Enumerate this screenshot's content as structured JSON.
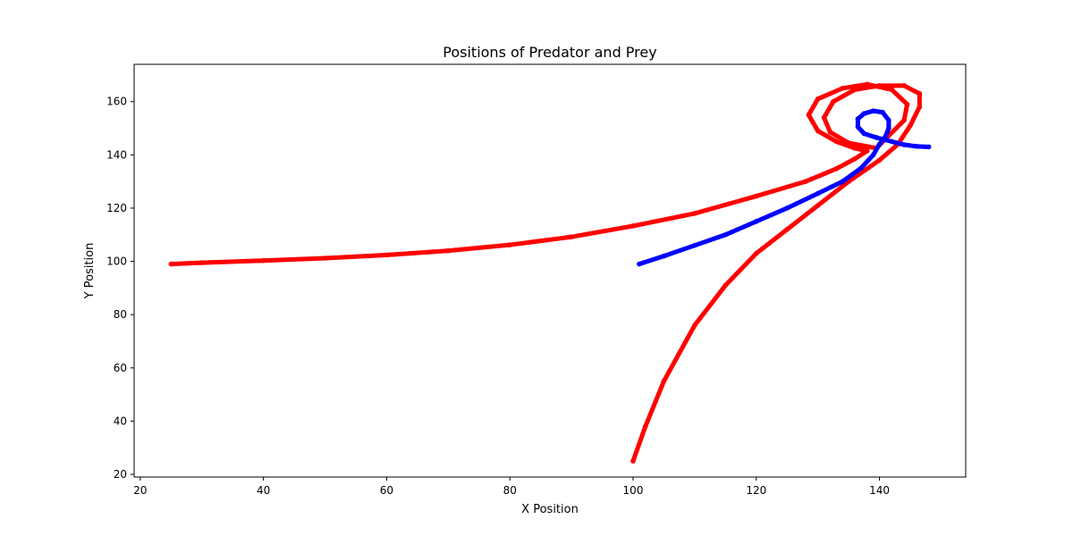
{
  "chart_data": {
    "type": "scatter",
    "title": "Positions of Predator and Prey",
    "xlabel": "X Position",
    "ylabel": "Y Position",
    "xlim": [
      19,
      154
    ],
    "ylim": [
      19,
      174
    ],
    "xticks": [
      20,
      40,
      60,
      80,
      100,
      120,
      140
    ],
    "yticks": [
      20,
      40,
      60,
      80,
      100,
      120,
      140,
      160
    ],
    "grid": false,
    "legend": "none",
    "series": [
      {
        "color": "#ff0000",
        "marker": "dot",
        "points": [
          [
            25,
            99
          ],
          [
            30,
            99.5
          ],
          [
            40,
            100.3
          ],
          [
            50,
            101.2
          ],
          [
            60,
            102.4
          ],
          [
            70,
            104
          ],
          [
            80,
            106.2
          ],
          [
            90,
            109.2
          ],
          [
            100,
            113.3
          ],
          [
            110,
            118
          ],
          [
            120,
            124.5
          ],
          [
            128,
            130
          ],
          [
            133,
            134.8
          ],
          [
            136,
            138.5
          ],
          [
            138,
            141.5
          ],
          [
            136,
            142.5
          ],
          [
            133,
            145
          ],
          [
            130,
            149
          ],
          [
            128.5,
            155
          ],
          [
            130,
            161
          ],
          [
            134,
            165
          ],
          [
            138,
            166.5
          ],
          [
            142,
            164.5
          ],
          [
            144.5,
            159
          ],
          [
            144,
            153
          ],
          [
            141,
            146
          ],
          [
            139.5,
            142.5
          ],
          [
            135,
            144.5
          ],
          [
            132,
            148.5
          ],
          [
            131,
            154
          ],
          [
            132.5,
            160
          ],
          [
            136,
            164.5
          ],
          [
            140,
            166
          ],
          [
            144,
            166
          ],
          [
            146.5,
            163
          ],
          [
            146.5,
            158
          ],
          [
            145,
            151
          ],
          [
            143,
            144
          ],
          [
            140,
            138
          ],
          [
            135,
            130
          ],
          [
            130,
            121
          ],
          [
            125,
            112
          ],
          [
            120,
            103
          ],
          [
            115,
            91
          ],
          [
            110,
            76
          ],
          [
            105,
            55
          ],
          [
            102,
            38
          ],
          [
            100,
            25
          ]
        ]
      },
      {
        "color": "#0000ff",
        "marker": "dot",
        "points": [
          [
            101,
            99
          ],
          [
            105,
            102
          ],
          [
            110,
            106
          ],
          [
            115,
            110
          ],
          [
            120,
            115
          ],
          [
            125,
            120
          ],
          [
            130,
            125.5
          ],
          [
            134,
            130
          ],
          [
            137,
            135
          ],
          [
            139,
            140
          ],
          [
            140,
            144
          ],
          [
            141,
            147
          ],
          [
            141.5,
            150
          ],
          [
            141.5,
            153
          ],
          [
            140.5,
            156
          ],
          [
            139,
            156.5
          ],
          [
            137.5,
            155.5
          ],
          [
            136.5,
            153.5
          ],
          [
            136.5,
            150.5
          ],
          [
            137.5,
            148
          ],
          [
            139.5,
            146.5
          ],
          [
            142,
            145
          ],
          [
            144,
            143.8
          ],
          [
            146,
            143.2
          ],
          [
            148,
            143
          ]
        ]
      }
    ]
  }
}
